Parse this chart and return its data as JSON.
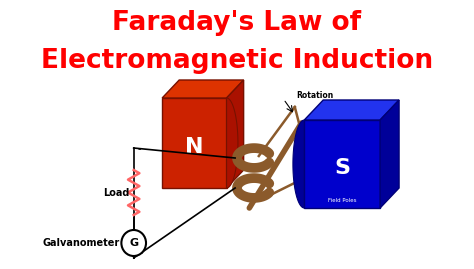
{
  "title_line1": "Faraday's Law of",
  "title_line2": "Electromagnetic Induction",
  "title_color": "#FF0000",
  "title_fontsize": 19,
  "bg_color": "#FFFFFF",
  "n_magnet_front": "#CC2200",
  "n_magnet_top": "#DD3300",
  "n_magnet_right": "#AA1100",
  "s_magnet_front": "#0000CC",
  "s_magnet_top": "#2233EE",
  "s_magnet_right": "#000099",
  "coil_color": "#8B5A2B",
  "resistor_color": "#FF6666",
  "rotation_label": "Rotation",
  "field_poles_label": "Field Poles",
  "load_label": "Load",
  "galvanometer_label": "Galvanometer",
  "n_label": "N",
  "s_label": "S",
  "n_fontsize": 16,
  "s_fontsize": 16,
  "load_fontsize": 7,
  "galv_fontsize": 7
}
